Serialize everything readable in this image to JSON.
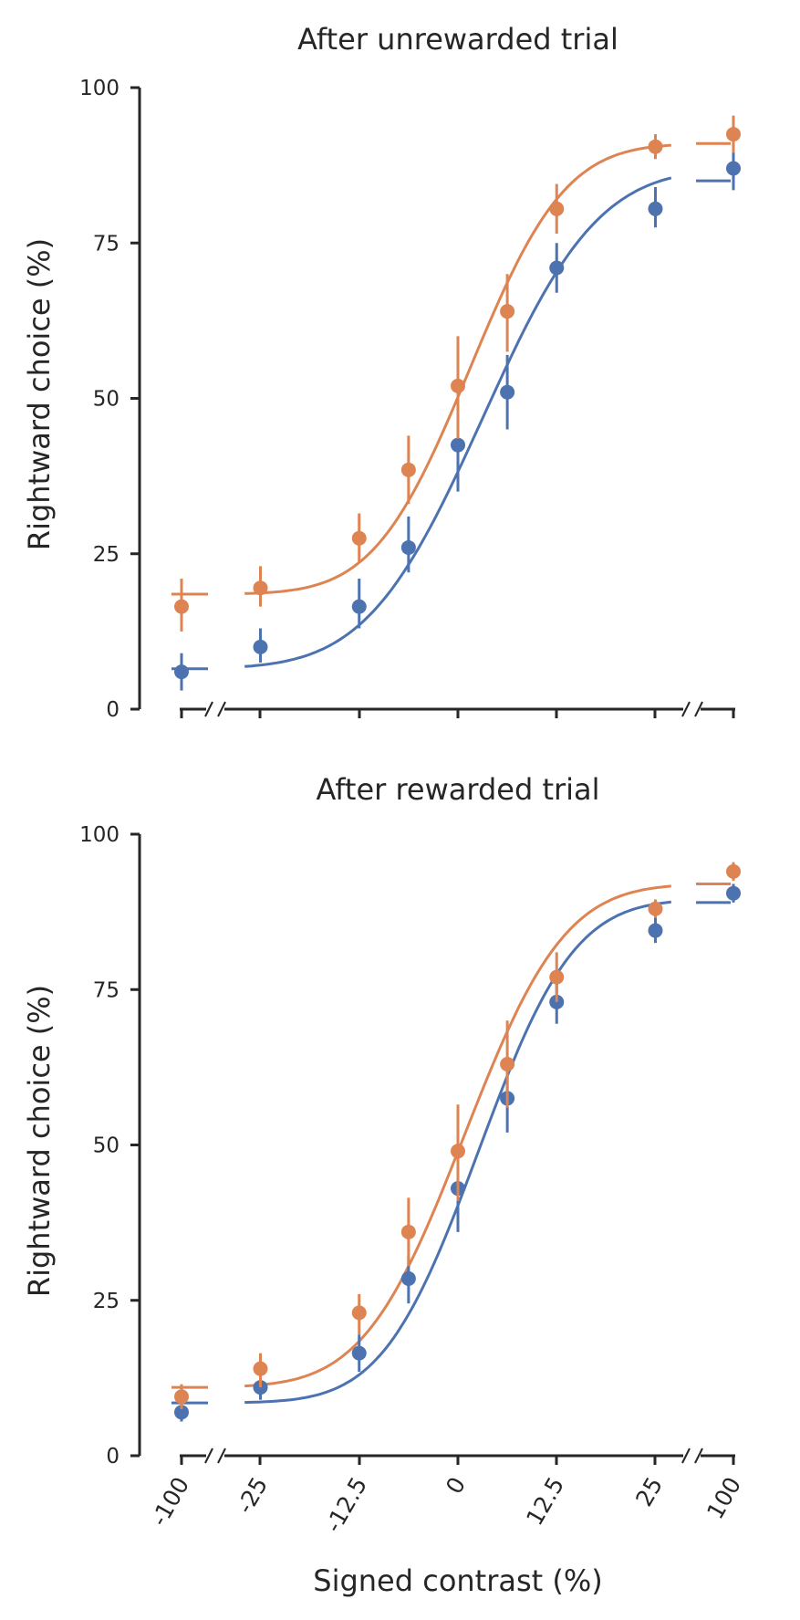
{
  "chart_data": [
    {
      "type": "line",
      "title": "After unrewarded trial",
      "ylabel": "Rightward choice (%)",
      "xlabel": "",
      "ylim": [
        0,
        100
      ],
      "yticks": [
        0,
        25,
        50,
        75,
        100
      ],
      "x_categories": [
        "-100",
        "-25",
        "-12.5",
        "0",
        "12.5",
        "25",
        "100"
      ],
      "axis_breaks": true,
      "grid": false,
      "colors": [
        "#4c72b0",
        "#dd8452"
      ],
      "series": [
        {
          "color": "#4c72b0",
          "points": [
            {
              "x": -100,
              "y": 6,
              "err": [
                3,
                9
              ]
            },
            {
              "x": -25,
              "y": 10,
              "err": [
                7.5,
                13
              ]
            },
            {
              "x": -12.5,
              "y": 16.5,
              "err": [
                13,
                21
              ]
            },
            {
              "x": -6.25,
              "y": 26,
              "err": [
                22,
                31
              ]
            },
            {
              "x": 0,
              "y": 42.5,
              "err": [
                35,
                50
              ]
            },
            {
              "x": 6.25,
              "y": 51,
              "err": [
                45,
                57
              ]
            },
            {
              "x": 12.5,
              "y": 71,
              "err": [
                67,
                75
              ]
            },
            {
              "x": 25,
              "y": 80.5,
              "err": [
                77.5,
                84
              ]
            },
            {
              "x": 100,
              "y": 87,
              "err": [
                83.5,
                90
              ]
            }
          ],
          "fit": {
            "mu": 3.1,
            "sigma": 11.5,
            "gamma": 6.5,
            "lambda": 13,
            "edge_left": 6.5,
            "edge_right": 85
          }
        },
        {
          "color": "#dd8452",
          "points": [
            {
              "x": -100,
              "y": 16.5,
              "err": [
                12.5,
                21
              ]
            },
            {
              "x": -25,
              "y": 19.5,
              "err": [
                16.5,
                23
              ]
            },
            {
              "x": -12.5,
              "y": 27.5,
              "err": [
                23.5,
                31.5
              ]
            },
            {
              "x": -6.25,
              "y": 38.5,
              "err": [
                33,
                44
              ]
            },
            {
              "x": 0,
              "y": 52,
              "err": [
                43.5,
                60
              ]
            },
            {
              "x": 6.25,
              "y": 64,
              "err": [
                57.5,
                70
              ]
            },
            {
              "x": 12.5,
              "y": 80.5,
              "err": [
                76.5,
                84.5
              ]
            },
            {
              "x": 25,
              "y": 90.5,
              "err": [
                88.5,
                92.5
              ]
            },
            {
              "x": 100,
              "y": 92.5,
              "err": [
                89.5,
                95.5
              ]
            }
          ],
          "fit": {
            "mu": 1.5,
            "sigma": 9.5,
            "gamma": 18.5,
            "lambda": 9,
            "edge_left": 18.5,
            "edge_right": 91
          }
        }
      ]
    },
    {
      "type": "line",
      "title": "After rewarded trial",
      "ylabel": "Rightward choice (%)",
      "xlabel": "Signed contrast (%)",
      "ylim": [
        0,
        100
      ],
      "yticks": [
        0,
        25,
        50,
        75,
        100
      ],
      "x_categories": [
        "-100",
        "-25",
        "-12.5",
        "0",
        "12.5",
        "25",
        "100"
      ],
      "axis_breaks": true,
      "grid": false,
      "colors": [
        "#4c72b0",
        "#dd8452"
      ],
      "series": [
        {
          "color": "#4c72b0",
          "points": [
            {
              "x": -100,
              "y": 7,
              "err": [
                5.5,
                8.5
              ]
            },
            {
              "x": -25,
              "y": 11,
              "err": [
                9,
                13
              ]
            },
            {
              "x": -12.5,
              "y": 16.5,
              "err": [
                13.5,
                19.5
              ]
            },
            {
              "x": -6.25,
              "y": 28.5,
              "err": [
                24.5,
                32
              ]
            },
            {
              "x": 0,
              "y": 43,
              "err": [
                36,
                50
              ]
            },
            {
              "x": 6.25,
              "y": 57.5,
              "err": [
                52,
                63
              ]
            },
            {
              "x": 12.5,
              "y": 73,
              "err": [
                69.5,
                76.5
              ]
            },
            {
              "x": 25,
              "y": 84.5,
              "err": [
                82.5,
                87
              ]
            },
            {
              "x": 100,
              "y": 90.5,
              "err": [
                89,
                92
              ]
            }
          ],
          "fit": {
            "mu": 2.6,
            "sigma": 9.5,
            "gamma": 8.5,
            "lambda": 10.5,
            "edge_left": 8.5,
            "edge_right": 89
          }
        },
        {
          "color": "#dd8452",
          "points": [
            {
              "x": -100,
              "y": 9.5,
              "err": [
                7.5,
                11.5
              ]
            },
            {
              "x": -25,
              "y": 14,
              "err": [
                11,
                16.5
              ]
            },
            {
              "x": -12.5,
              "y": 23,
              "err": [
                19.5,
                26
              ]
            },
            {
              "x": -6.25,
              "y": 36,
              "err": [
                30.5,
                41.5
              ]
            },
            {
              "x": 0,
              "y": 49,
              "err": [
                41,
                56.5
              ]
            },
            {
              "x": 6.25,
              "y": 63,
              "err": [
                56,
                70
              ]
            },
            {
              "x": 12.5,
              "y": 77,
              "err": [
                73,
                81
              ]
            },
            {
              "x": 25,
              "y": 88,
              "err": [
                86.5,
                89.5
              ]
            },
            {
              "x": 100,
              "y": 94,
              "err": [
                92.5,
                95.5
              ]
            }
          ],
          "fit": {
            "mu": 0.8,
            "sigma": 10,
            "gamma": 11,
            "lambda": 8,
            "edge_left": 11,
            "edge_right": 92
          }
        }
      ]
    }
  ]
}
